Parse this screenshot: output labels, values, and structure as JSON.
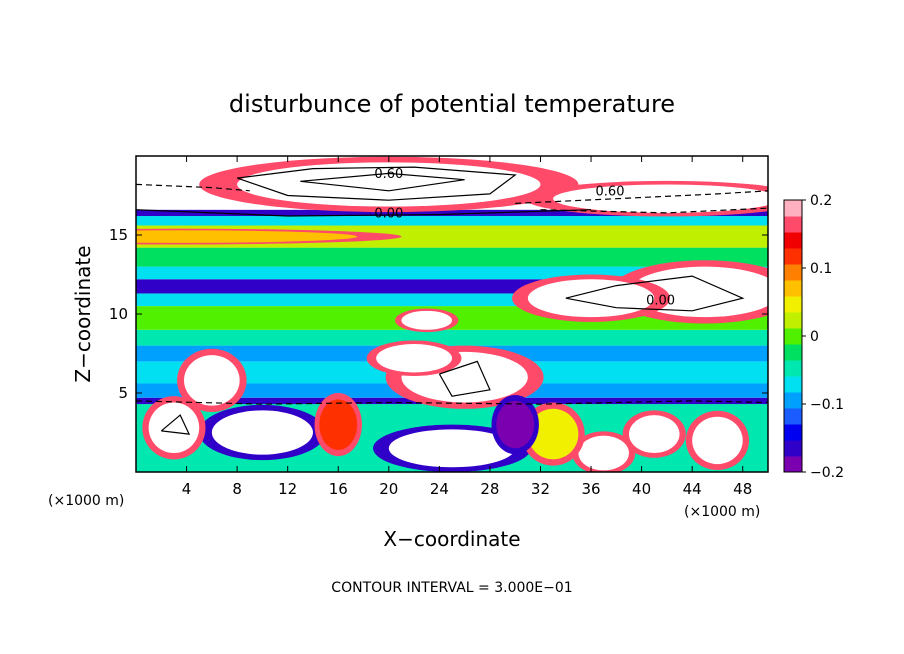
{
  "chart_data": {
    "type": "heatmap",
    "title": "disturbunce of potential temperature",
    "xlabel": "X−coordinate",
    "ylabel": "Z−coordinate",
    "x_unit_left": "(×1000 m)",
    "x_unit_right": "(×1000 m)",
    "footer": "CONTOUR INTERVAL = 3.000E−01",
    "xlim": [
      0,
      50
    ],
    "ylim": [
      0,
      20
    ],
    "xticks": [
      4,
      8,
      12,
      16,
      20,
      24,
      28,
      32,
      36,
      40,
      44,
      48
    ],
    "xtick_labels": [
      "4",
      "8",
      "12",
      "16",
      "20",
      "24",
      "28",
      "32",
      "36",
      "40",
      "44",
      "48"
    ],
    "yticks": [
      5,
      10,
      15
    ],
    "ytick_labels": [
      "5",
      "10",
      "15"
    ],
    "colorbar": {
      "min": -0.2,
      "max": 0.2,
      "ticks": [
        0.2,
        0.1,
        0,
        -0.1,
        -0.2
      ],
      "tick_labels": [
        "0.2",
        "0.1",
        "0",
        "−0.1",
        "−0.2"
      ],
      "colors": [
        "#7a00b0",
        "#3000c8",
        "#0000f0",
        "#1a5cff",
        "#00a0ff",
        "#00e0f0",
        "#00e8b0",
        "#00e060",
        "#50f000",
        "#c0f000",
        "#f0f000",
        "#ffc000",
        "#ff8000",
        "#ff3000",
        "#f00000",
        "#ff4a6a",
        "#ffb0c0"
      ]
    },
    "contour_labels": [
      "0.60",
      "0.60",
      "0.00",
      "0.00"
    ],
    "bands": [
      {
        "z0": 0,
        "z1": 4.3,
        "value": -0.05
      },
      {
        "z0": 4.3,
        "z1": 4.7,
        "value": -0.17
      },
      {
        "z0": 4.7,
        "z1": 5.6,
        "value": -0.1
      },
      {
        "z0": 5.6,
        "z1": 7.0,
        "value": -0.06
      },
      {
        "z0": 7.0,
        "z1": 8.0,
        "value": -0.09
      },
      {
        "z0": 8.0,
        "z1": 9.0,
        "value": -0.04
      },
      {
        "z0": 9.0,
        "z1": 10.5,
        "value": -0.01
      },
      {
        "z0": 10.5,
        "z1": 11.3,
        "value": -0.08
      },
      {
        "z0": 11.3,
        "z1": 12.2,
        "value": -0.16
      },
      {
        "z0": 12.2,
        "z1": 13.0,
        "value": -0.08
      },
      {
        "z0": 13.0,
        "z1": 14.2,
        "value": -0.02
      },
      {
        "z0": 14.2,
        "z1": 15.6,
        "value": 0.02
      },
      {
        "z0": 15.6,
        "z1": 16.2,
        "value": -0.08
      },
      {
        "z0": 16.2,
        "z1": 16.6,
        "value": -0.16
      },
      {
        "z0": 16.6,
        "z1": 20,
        "value": 0.25
      }
    ],
    "anomalies": [
      {
        "x": 20,
        "z": 18.2,
        "rx": 12,
        "rz": 1.4,
        "value": 0.25
      },
      {
        "x": 42,
        "z": 17.3,
        "rx": 9,
        "rz": 0.9,
        "value": 0.25
      },
      {
        "x": 45,
        "z": 11.4,
        "rx": 6,
        "rz": 1.6,
        "value": 0.25
      },
      {
        "x": 36,
        "z": 11.0,
        "rx": 5,
        "rz": 1.2,
        "value": 0.25
      },
      {
        "x": 26,
        "z": 6.0,
        "rx": 5,
        "rz": 1.6,
        "value": 0.25
      },
      {
        "x": 6,
        "z": 5.8,
        "rx": 2.2,
        "rz": 1.6,
        "value": 0.25
      },
      {
        "x": 22,
        "z": 7.2,
        "rx": 3,
        "rz": 0.9,
        "value": 0.25
      },
      {
        "x": 23,
        "z": 9.6,
        "rx": 2,
        "rz": 0.6,
        "value": 0.25
      },
      {
        "x": 10,
        "z": 2.5,
        "rx": 4,
        "rz": 1.4,
        "value": -0.25
      },
      {
        "x": 25,
        "z": 1.5,
        "rx": 5,
        "rz": 1.2,
        "value": -0.25
      },
      {
        "x": 3,
        "z": 2.8,
        "rx": 2,
        "rz": 1.6,
        "value": 0.25
      },
      {
        "x": 37,
        "z": 1.2,
        "rx": 2,
        "rz": 1.1,
        "value": 0.25
      },
      {
        "x": 41,
        "z": 2.4,
        "rx": 2,
        "rz": 1.2,
        "value": 0.25
      },
      {
        "x": 46,
        "z": 2.0,
        "rx": 2,
        "rz": 1.5,
        "value": 0.25
      },
      {
        "x": 16,
        "z": 3.0,
        "rx": 1.5,
        "rz": 1.6,
        "value": 0.12
      },
      {
        "x": 33,
        "z": 2.4,
        "rx": 2,
        "rz": 1.6,
        "value": 0.05
      },
      {
        "x": 30,
        "z": 3.0,
        "rx": 1.5,
        "rz": 1.5,
        "value": -0.18
      },
      {
        "x": 3.5,
        "z": 14.9,
        "rx": 14,
        "rz": 0.4,
        "value": 0.06
      }
    ]
  }
}
